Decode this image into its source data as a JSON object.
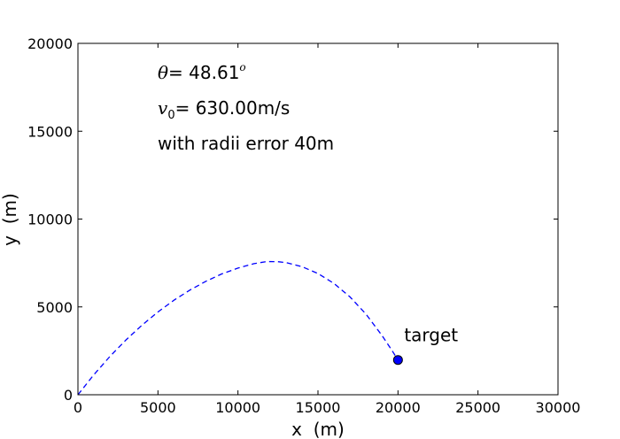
{
  "chart_data": {
    "type": "line",
    "title": "",
    "xlabel": "x  (m)",
    "ylabel": "y  (m)",
    "xlim": [
      0,
      30000
    ],
    "ylim": [
      0,
      20000
    ],
    "xticks": [
      0,
      5000,
      10000,
      15000,
      20000,
      25000,
      30000
    ],
    "yticks": [
      0,
      5000,
      10000,
      15000,
      20000
    ],
    "grid": false,
    "series": [
      {
        "name": "",
        "style": "dashed",
        "color": "#0000ff",
        "x": [
          0,
          1000,
          2000,
          3000,
          4000,
          5000,
          6000,
          7000,
          8000,
          9000,
          10000,
          11000,
          11800,
          12500,
          13000,
          14000,
          15000,
          16000,
          17000,
          18000,
          19000,
          19600,
          20000
        ],
        "y": [
          0,
          1150,
          2180,
          3120,
          3960,
          4710,
          5380,
          5960,
          6460,
          6880,
          7210,
          7460,
          7580,
          7570,
          7520,
          7290,
          6900,
          6330,
          5570,
          4590,
          3370,
          2560,
          1980
        ]
      }
    ],
    "target": {
      "x": 20000,
      "y": 1980,
      "label": "target",
      "color": "#0000ff"
    },
    "annotations": {
      "theta_symbol": "θ",
      "theta_text": "=  48.61",
      "theta_unit": "o",
      "v0_symbol": "v",
      "v0_sub": "0",
      "v0_text": "=  630.00m/s",
      "error_text": "with radii error 40m"
    }
  }
}
